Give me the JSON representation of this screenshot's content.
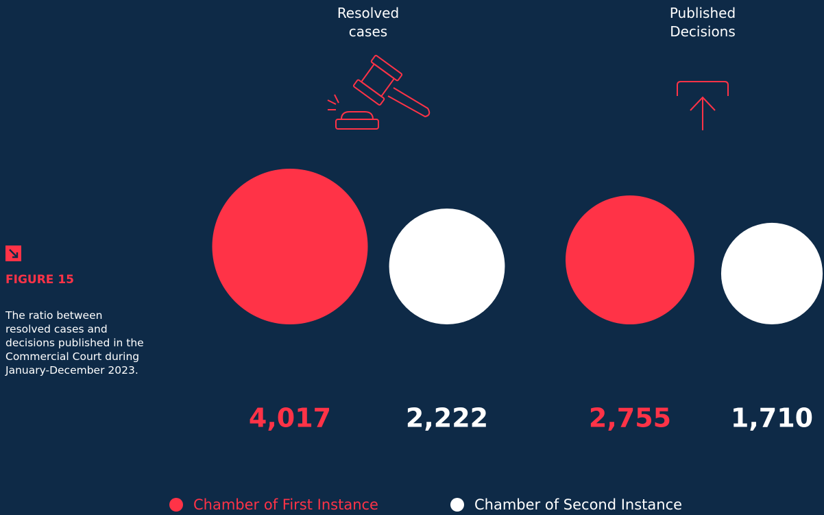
{
  "chart_data": {
    "type": "bubble",
    "figure_label": "FIGURE 15",
    "caption": "The ratio between resolved cases and decisions published in the Commercial Court during January-December 2023.",
    "categories": [
      "Resolved cases",
      "Published Decisions"
    ],
    "series": [
      {
        "name": "Chamber of First Instance",
        "color": "#ff3347",
        "values": [
          4017,
          2755
        ],
        "value_labels": [
          "4,017",
          "2,755"
        ]
      },
      {
        "name": "Chamber of Second Instance",
        "color": "#ffffff",
        "values": [
          2222,
          1710
        ],
        "value_labels": [
          "2,222",
          "1,710"
        ]
      }
    ]
  }
}
